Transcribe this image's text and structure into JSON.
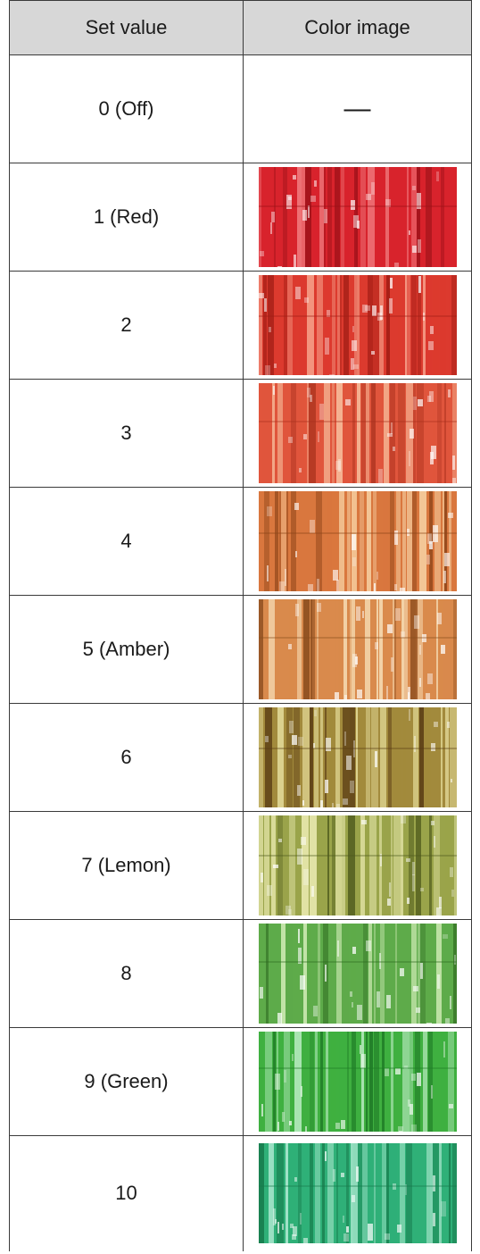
{
  "table": {
    "headers": {
      "set_value": "Set value",
      "color_image": "Color image"
    },
    "rows": [
      {
        "set_value": "0 (Off)",
        "image": "none",
        "dash": "—"
      },
      {
        "set_value": "1 (Red)",
        "image": "swatch",
        "colors": {
          "base": "#d8232c",
          "light": "#f07a7e",
          "dark": "#9a1018"
        }
      },
      {
        "set_value": "2",
        "image": "swatch",
        "colors": {
          "base": "#dc3a2e",
          "light": "#f6a08a",
          "dark": "#a01c14"
        }
      },
      {
        "set_value": "3",
        "image": "swatch",
        "colors": {
          "base": "#e0553c",
          "light": "#f8c2a0",
          "dark": "#a8301c"
        }
      },
      {
        "set_value": "4",
        "image": "swatch",
        "colors": {
          "base": "#d9773e",
          "light": "#f8d6a8",
          "dark": "#8c4418"
        }
      },
      {
        "set_value": "5 (Amber)",
        "image": "swatch",
        "colors": {
          "base": "#d98a4c",
          "light": "#f6dcb4",
          "dark": "#8a4c1e"
        }
      },
      {
        "set_value": "6",
        "image": "swatch",
        "colors": {
          "base": "#a28a3c",
          "light": "#e8e0a0",
          "dark": "#5a3c14"
        }
      },
      {
        "set_value": "7 (Lemon)",
        "image": "swatch",
        "colors": {
          "base": "#9aa44a",
          "light": "#eaeab0",
          "dark": "#4e5a1c"
        }
      },
      {
        "set_value": "8",
        "image": "swatch",
        "colors": {
          "base": "#5eab4a",
          "light": "#cfeab4",
          "dark": "#2e6a20"
        }
      },
      {
        "set_value": "9 (Green)",
        "image": "swatch",
        "colors": {
          "base": "#3fb040",
          "light": "#b8eac0",
          "dark": "#1e7a26"
        }
      },
      {
        "set_value": "10",
        "image": "swatch",
        "colors": {
          "base": "#2fb078",
          "light": "#b6ecd6",
          "dark": "#16784a"
        }
      }
    ]
  }
}
